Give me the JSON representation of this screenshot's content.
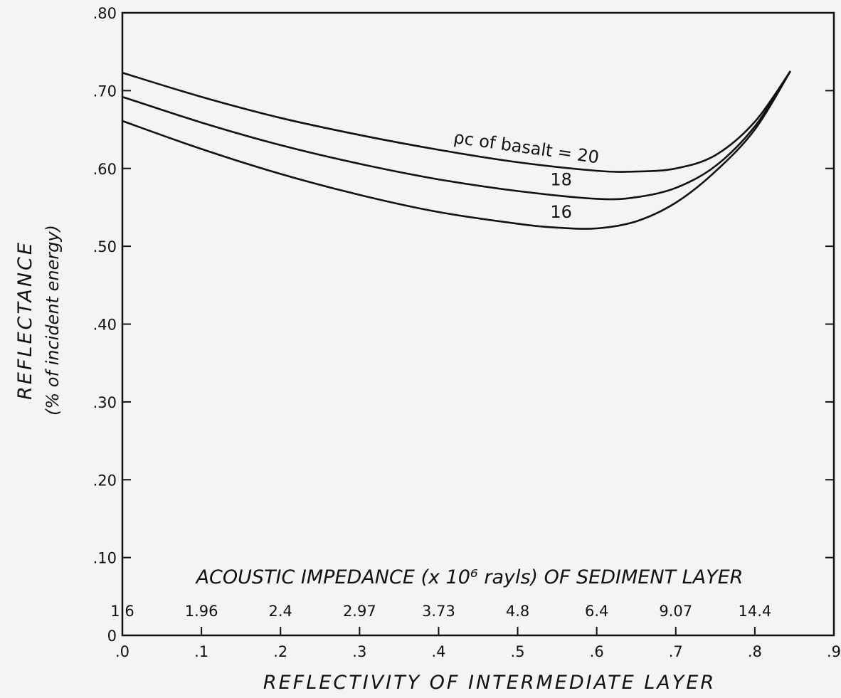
{
  "chart_data": {
    "type": "line",
    "xlabel": "REFLECTIVITY OF INTERMEDIATE LAYER",
    "ylabel": "REFLECTANCE",
    "ylabel_sub": "(% of incident energy)",
    "secondary_x_label": "ACOUSTIC IMPEDANCE (x 10⁶ rayls) OF SEDIMENT LAYER",
    "xlim": [
      0,
      0.9
    ],
    "ylim": [
      0,
      0.8
    ],
    "x_ticks": [
      0,
      0.1,
      0.2,
      0.3,
      0.4,
      0.5,
      0.6,
      0.7,
      0.8,
      0.9
    ],
    "x_tick_labels": [
      ".0",
      ".1",
      ".2",
      ".3",
      ".4",
      ".5",
      ".6",
      ".7",
      ".8",
      ".9"
    ],
    "y_ticks": [
      0,
      0.1,
      0.2,
      0.3,
      0.4,
      0.5,
      0.6,
      0.7,
      0.8
    ],
    "y_tick_labels": [
      "0",
      ".10",
      ".20",
      ".30",
      ".40",
      ".50",
      ".60",
      ".70",
      ".80"
    ],
    "secondary_x_ticks": [
      0,
      0.1,
      0.2,
      0.3,
      0.4,
      0.5,
      0.6,
      0.7,
      0.8
    ],
    "secondary_x_tick_labels": [
      "1.6",
      "1.96",
      "2.4",
      "2.97",
      "3.73",
      "4.8",
      "6.4",
      "9.07",
      "14.4"
    ],
    "grid": false,
    "series": [
      {
        "name": "ρc of basalt = 20",
        "label_text": "ρc of basalt = 20",
        "x": [
          0,
          0.1,
          0.2,
          0.3,
          0.4,
          0.5,
          0.6,
          0.65,
          0.7,
          0.75,
          0.8,
          0.845
        ],
        "y": [
          0.723,
          0.692,
          0.665,
          0.643,
          0.624,
          0.608,
          0.597,
          0.596,
          0.6,
          0.617,
          0.66,
          0.725
        ]
      },
      {
        "name": "18",
        "label_text": "18",
        "x": [
          0,
          0.1,
          0.2,
          0.3,
          0.4,
          0.5,
          0.6,
          0.65,
          0.7,
          0.75,
          0.8,
          0.845
        ],
        "y": [
          0.692,
          0.659,
          0.63,
          0.606,
          0.586,
          0.571,
          0.561,
          0.563,
          0.575,
          0.603,
          0.654,
          0.725
        ]
      },
      {
        "name": "16",
        "label_text": "16",
        "x": [
          0,
          0.1,
          0.2,
          0.3,
          0.4,
          0.5,
          0.55,
          0.6,
          0.65,
          0.7,
          0.75,
          0.8,
          0.845
        ],
        "y": [
          0.661,
          0.625,
          0.593,
          0.566,
          0.544,
          0.529,
          0.524,
          0.523,
          0.532,
          0.556,
          0.596,
          0.65,
          0.725
        ]
      }
    ]
  }
}
